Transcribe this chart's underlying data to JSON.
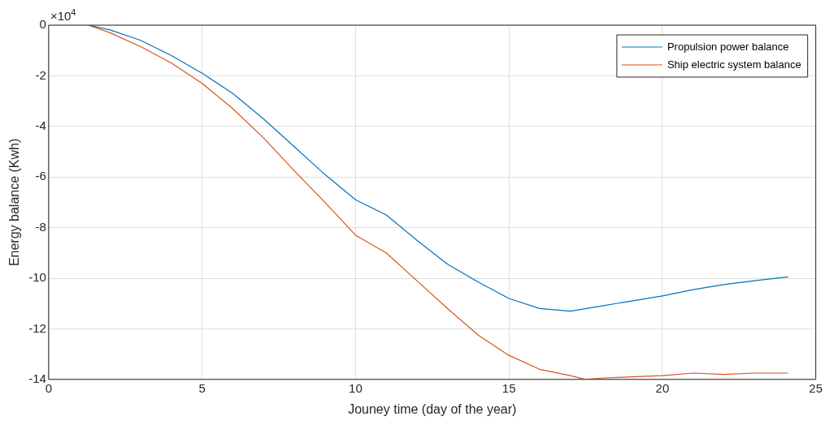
{
  "chart_data": {
    "type": "line",
    "xlabel": "Jouney time (day of the year)",
    "ylabel": "Energy balance (Kwh)",
    "annotations": [
      "×10$^{4}$"
    ],
    "xlim": [
      0,
      25
    ],
    "xticks": [
      0,
      5,
      10,
      15,
      20,
      25
    ],
    "ylim": [
      -14,
      0
    ],
    "yticks": [
      -14,
      -12,
      -10,
      -8,
      -6,
      -4,
      -2,
      0
    ],
    "grid": true,
    "legend": "top right",
    "marker": "none",
    "line_style": "solid",
    "series": [
      {
        "name": "Propulsion power balance",
        "color": "#0072bd",
        "x": [
          1.3,
          2,
          3,
          4,
          5,
          6,
          7,
          8,
          9,
          10,
          11,
          12,
          13,
          14,
          15,
          16,
          17,
          18,
          19,
          20,
          21,
          22,
          23,
          24.1
        ],
        "values": [
          0,
          -0.19,
          -0.6,
          -1.2,
          -1.9,
          -2.7,
          -3.7,
          -4.8,
          -5.9,
          -6.9,
          -7.5,
          -8.5,
          -9.45,
          -10.15,
          -10.8,
          -11.2,
          -11.3,
          -11.1,
          -10.9,
          -10.7,
          -10.45,
          -10.25,
          -10.1,
          -9.95
        ]
      },
      {
        "name": "Ship electric system balance",
        "color": "#d95319",
        "x": [
          1.3,
          2,
          3,
          4,
          5,
          6,
          7,
          8,
          9,
          10,
          11,
          12,
          13,
          14,
          15,
          16,
          17,
          17.5,
          18,
          19,
          20,
          21,
          22,
          23,
          24.1
        ],
        "values": [
          0,
          -0.3,
          -0.85,
          -1.5,
          -2.3,
          -3.3,
          -4.45,
          -5.75,
          -7.0,
          -8.3,
          -9.0,
          -10.1,
          -11.2,
          -12.25,
          -13.05,
          -13.6,
          -13.85,
          -14.0,
          -13.95,
          -13.9,
          -13.85,
          -13.75,
          -13.8,
          -13.75,
          -13.75
        ]
      }
    ]
  }
}
